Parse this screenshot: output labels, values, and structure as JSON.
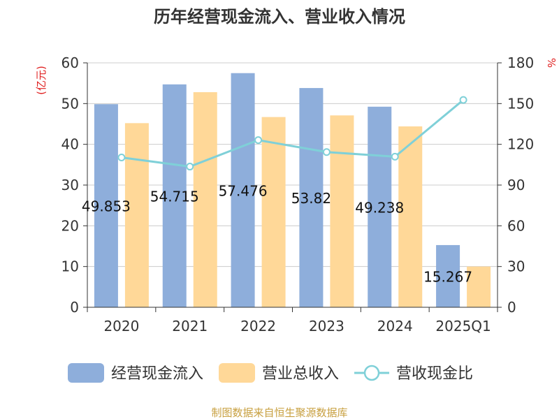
{
  "chart_data": {
    "type": "bar",
    "title": "历年经营现金流入、营业收入情况",
    "categories": [
      "2020",
      "2021",
      "2022",
      "2023",
      "2024",
      "2025Q1"
    ],
    "series": [
      {
        "name": "经营现金流入",
        "type": "bar",
        "axis": "left",
        "color": "#8eaedb",
        "values": [
          49.853,
          54.715,
          57.476,
          53.82,
          49.238,
          15.267
        ],
        "labels": [
          "49.853",
          "54.715",
          "57.476",
          "53.82",
          "49.238",
          "15.267"
        ]
      },
      {
        "name": "营业总收入",
        "type": "bar",
        "axis": "left",
        "color": "#ffd898",
        "values": [
          45.2,
          52.8,
          46.7,
          47.1,
          44.4,
          10.0
        ]
      },
      {
        "name": "营收现金比",
        "type": "line",
        "axis": "right",
        "color": "#7fd0d8",
        "values": [
          110.3,
          103.6,
          123.1,
          114.3,
          110.9,
          152.7
        ]
      }
    ],
    "y_left": {
      "label": "(亿元)",
      "min": 0,
      "max": 60,
      "ticks": [
        0,
        10,
        20,
        30,
        40,
        50,
        60
      ]
    },
    "y_right": {
      "label": "%",
      "min": 0,
      "max": 180,
      "ticks": [
        0,
        30,
        60,
        90,
        120,
        150,
        180
      ]
    },
    "grid": true,
    "legend": "bottom"
  },
  "source": "制图数据来自恒生聚源数据库"
}
